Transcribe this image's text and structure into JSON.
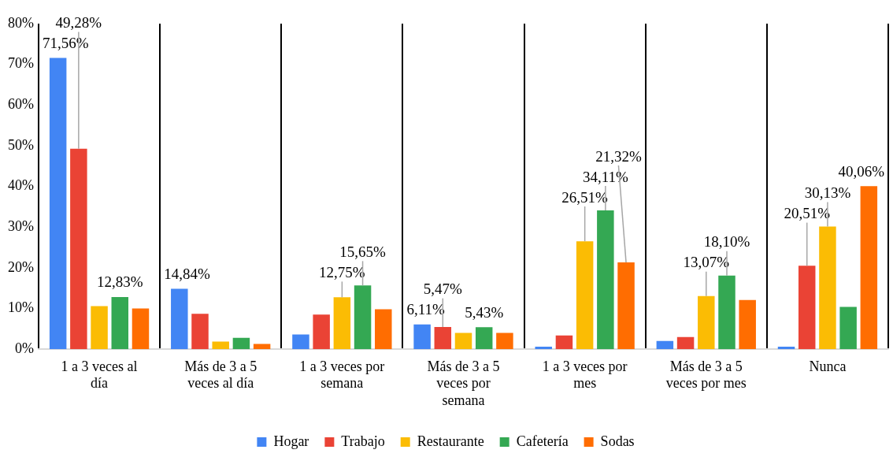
{
  "chart_data": {
    "type": "bar",
    "categories": [
      "1 a 3 veces al día",
      "Más de 3 a 5 veces al día",
      "1 a 3 veces por semana",
      "Más de 3 a 5 veces por semana",
      "1 a 3 veces por mes",
      "Más de 3 a 5 veces por mes",
      "Nunca"
    ],
    "series": [
      {
        "name": "Hogar",
        "color": "#4285f4",
        "values": [
          71.56,
          14.84,
          3.6,
          6.11,
          0.6,
          2.0,
          0.6
        ],
        "value_labels": [
          "71,56%",
          "14,84%",
          null,
          "6,11%",
          null,
          null,
          null
        ]
      },
      {
        "name": "Trabajo",
        "color": "#ea4335",
        "values": [
          49.28,
          8.7,
          8.5,
          5.47,
          3.4,
          3.0,
          20.51
        ],
        "value_labels": [
          "49,28%",
          null,
          null,
          "5,47%",
          null,
          null,
          "20,51%"
        ]
      },
      {
        "name": "Restaurante",
        "color": "#fbbc04",
        "values": [
          10.6,
          1.9,
          12.75,
          4.0,
          26.51,
          13.07,
          30.13
        ],
        "value_labels": [
          null,
          null,
          "12,75%",
          null,
          "26,51%",
          "13,07%",
          "30,13%"
        ]
      },
      {
        "name": "Cafetería",
        "color": "#34a853",
        "values": [
          12.83,
          2.8,
          15.65,
          5.43,
          34.11,
          18.1,
          10.4
        ],
        "value_labels": [
          "12,83%",
          null,
          "15,65%",
          "5,43%",
          "34,11%",
          "18,10%",
          null
        ]
      },
      {
        "name": "Sodas",
        "color": "#ff6d01",
        "values": [
          10.0,
          1.3,
          9.8,
          4.0,
          21.32,
          12.1,
          40.06
        ],
        "value_labels": [
          null,
          null,
          null,
          null,
          "21,32%",
          null,
          "40,06%"
        ]
      }
    ],
    "ylim": [
      0,
      80
    ],
    "yticks": [
      {
        "value": 0,
        "label": "0%"
      },
      {
        "value": 10,
        "label": "10%"
      },
      {
        "value": 20,
        "label": "20%"
      },
      {
        "value": 30,
        "label": "30%"
      },
      {
        "value": 40,
        "label": "40%"
      },
      {
        "value": 50,
        "label": "50%"
      },
      {
        "value": 60,
        "label": "60%"
      },
      {
        "value": 70,
        "label": "70%"
      },
      {
        "value": 80,
        "label": "80%"
      }
    ],
    "grid": "x",
    "legend": "bottom"
  }
}
